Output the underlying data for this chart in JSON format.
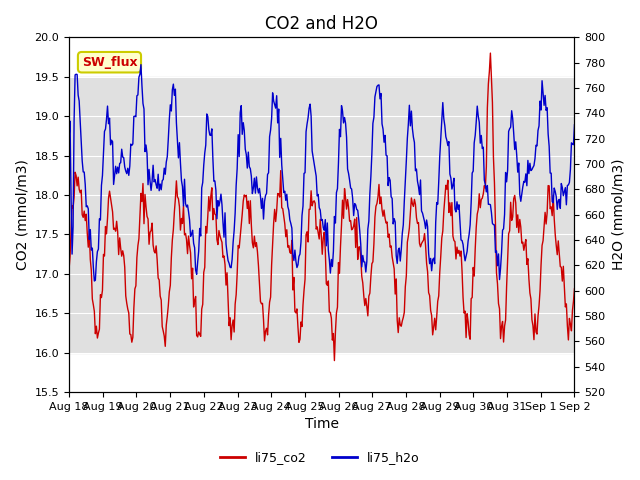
{
  "title": "CO2 and H2O",
  "xlabel": "Time",
  "ylabel_left": "CO2 (mmol/m3)",
  "ylabel_right": "H2O (mmol/m3)",
  "ylim_left": [
    15.5,
    20.0
  ],
  "ylim_right": [
    520,
    800
  ],
  "yticks_left": [
    15.5,
    16.0,
    16.5,
    17.0,
    17.5,
    18.0,
    18.5,
    19.0,
    19.5,
    20.0
  ],
  "yticks_right": [
    520,
    540,
    560,
    580,
    600,
    620,
    640,
    660,
    680,
    700,
    720,
    740,
    760,
    780,
    800
  ],
  "xtick_labels": [
    "Aug 18",
    "Aug 19",
    "Aug 20",
    "Aug 21",
    "Aug 22",
    "Aug 23",
    "Aug 24",
    "Aug 25",
    "Aug 26",
    "Aug 27",
    "Aug 28",
    "Aug 29",
    "Aug 30",
    "Aug 31",
    "Sep 1",
    "Sep 2"
  ],
  "co2_color": "#cc0000",
  "h2o_color": "#0000cc",
  "background_color": "#ffffff",
  "band_color": "#e0e0e0",
  "annotation_text": "SW_flux",
  "annotation_color": "#cc0000",
  "annotation_bg": "#ffffcc",
  "annotation_border": "#cccc00",
  "legend_co2": "li75_co2",
  "legend_h2o": "li75_h2o",
  "n_points": 500,
  "xmin": 0,
  "xmax": 15
}
